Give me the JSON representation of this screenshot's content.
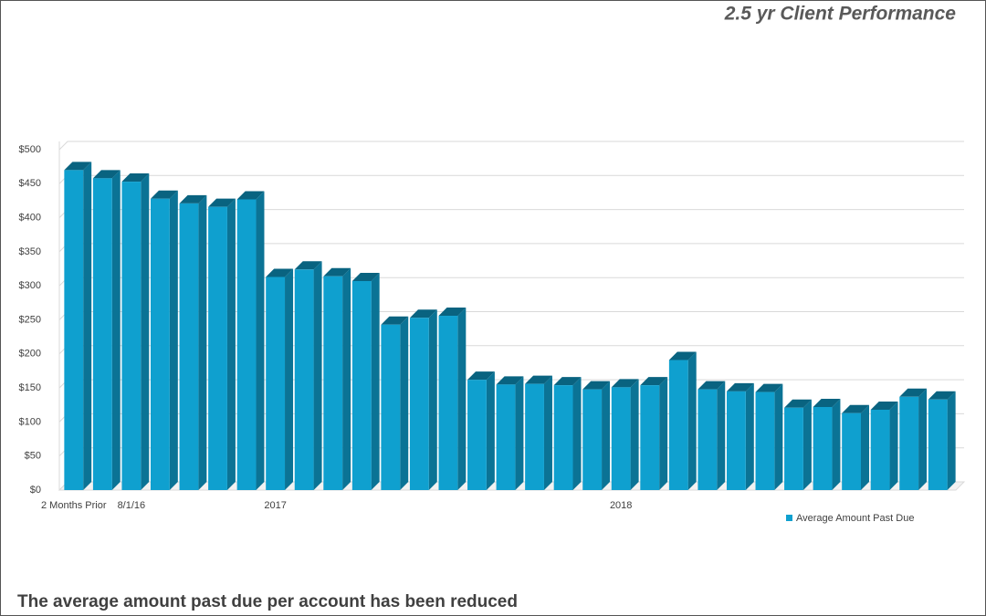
{
  "chart_data": {
    "type": "bar",
    "title": "2.5 yr Client Performance",
    "caption": "The average amount past due per account has been reduced",
    "categories": [
      "2 Months Prior",
      null,
      "8/1/16",
      null,
      null,
      null,
      null,
      "2017",
      null,
      null,
      null,
      null,
      null,
      null,
      null,
      null,
      null,
      null,
      null,
      "2018",
      null,
      null,
      null,
      null,
      null,
      null,
      null,
      null,
      null,
      null,
      null
    ],
    "series": [
      {
        "name": "Average Amount Past Due",
        "color": "#0fa0cf",
        "values": [
          470,
          458,
          453,
          428,
          421,
          416,
          427,
          313,
          324,
          314,
          307,
          243,
          253,
          256,
          162,
          155,
          156,
          154,
          148,
          151,
          154,
          191,
          148,
          145,
          144,
          121,
          122,
          113,
          118,
          137,
          133
        ]
      }
    ],
    "ylim": [
      0,
      500
    ],
    "yticks": [
      {
        "value": 0,
        "label": "$0"
      },
      {
        "value": 50,
        "label": "$50"
      },
      {
        "value": 100,
        "label": "$100"
      },
      {
        "value": 150,
        "label": "$150"
      },
      {
        "value": 200,
        "label": "$200"
      },
      {
        "value": 250,
        "label": "$250"
      },
      {
        "value": 300,
        "label": "$300"
      },
      {
        "value": 350,
        "label": "$350"
      },
      {
        "value": 400,
        "label": "$400"
      },
      {
        "value": 450,
        "label": "$450"
      },
      {
        "value": 500,
        "label": "$500"
      }
    ],
    "grid": true,
    "legend": "bottom-right"
  }
}
